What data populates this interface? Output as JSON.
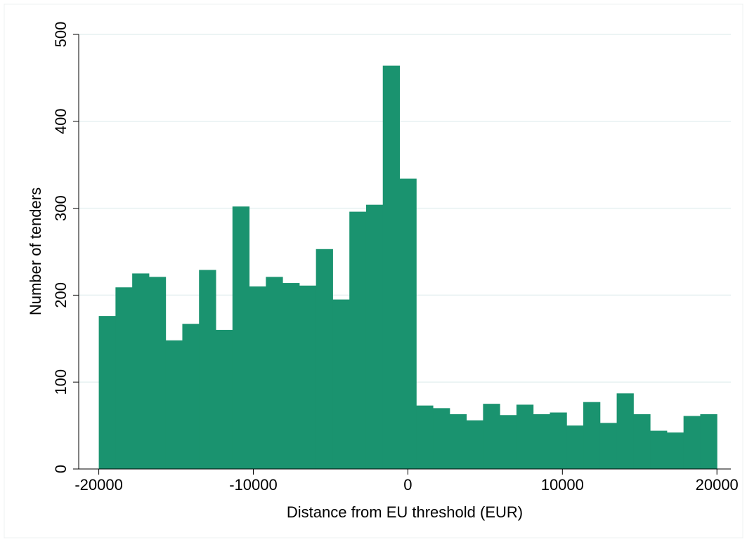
{
  "chart_data": {
    "type": "histogram",
    "xlabel": "Distance from EU threshold (EUR)",
    "ylabel": "Number of tenders",
    "bins": [
      -20000,
      -18919,
      -17838,
      -16757,
      -15676,
      -14595,
      -13514,
      -12432,
      -11351,
      -10270,
      -9189,
      -8108,
      -7027,
      -5946,
      -4865,
      -3784,
      -2703,
      -1622,
      -541,
      541,
      1622,
      2703,
      3784,
      4865,
      5946,
      7027,
      8108,
      9189,
      10270,
      11351,
      12432,
      13514,
      14595,
      15676,
      16757,
      17838,
      18919,
      20000
    ],
    "values": [
      176,
      209,
      225,
      221,
      148,
      167,
      229,
      160,
      302,
      210,
      221,
      214,
      211,
      253,
      195,
      296,
      304,
      464,
      334,
      73,
      70,
      63,
      56,
      75,
      62,
      74,
      63,
      65,
      50,
      77,
      53,
      87,
      63,
      44,
      42,
      61,
      63
    ],
    "color": "#1a936f",
    "xlim": [
      -21300,
      20900
    ],
    "xticks": [
      -20000,
      -10000,
      0,
      10000,
      20000
    ],
    "ylim": [
      0,
      500
    ],
    "yticks": [
      0,
      100,
      200,
      300,
      400,
      500
    ],
    "grid": true
  }
}
